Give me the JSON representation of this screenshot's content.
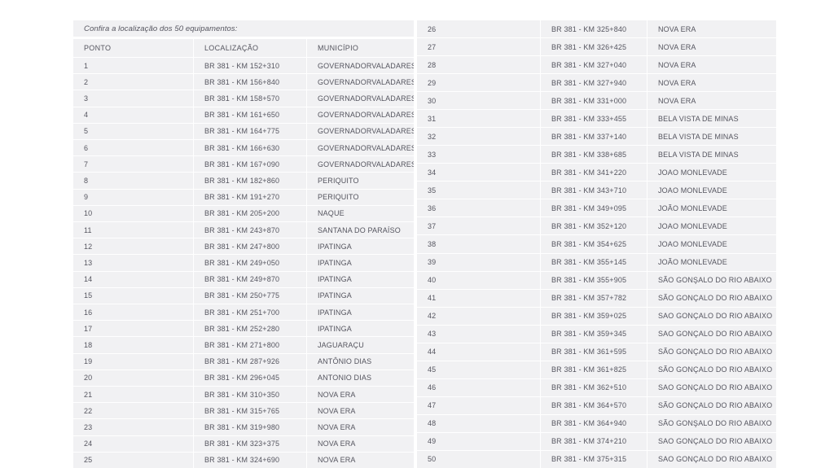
{
  "intro_label": "Confira a localização dos 50 equipamentos:",
  "columns": {
    "ponto": "PONTO",
    "localizacao": "LOCALIZAÇÃO",
    "municipio": "MUNICÍPIO"
  },
  "left_rows": [
    [
      "1",
      "BR 381 - KM 152+310",
      "GOVERNADORVALADARES"
    ],
    [
      "2",
      "BR 381 - KM 156+840",
      "GOVERNADORVALADARES"
    ],
    [
      "3",
      "BR 381 - KM 158+570",
      "GOVERNADORVALADARES"
    ],
    [
      "4",
      "BR 381 - KM 161+650",
      "GOVERNADORVALADARES"
    ],
    [
      "5",
      "BR 381 - KM 164+775",
      "GOVERNADORVALADARES"
    ],
    [
      "6",
      "BR 381 - KM 166+630",
      "GOVERNADORVALADARES"
    ],
    [
      "7",
      "BR 381 - KM 167+090",
      "GOVERNADORVALADARES"
    ],
    [
      "8",
      "BR 381 - KM 182+860",
      "PERIQUITO"
    ],
    [
      "9",
      "BR 381 - KM 191+270",
      "PERIQUITO"
    ],
    [
      "10",
      "BR 381 - KM 205+200",
      "NAQUE"
    ],
    [
      "11",
      "BR 381 - KM 243+870",
      "SANTANA DO PARAÍSO"
    ],
    [
      "12",
      "BR 381 - KM 247+800",
      "IPATINGA"
    ],
    [
      "13",
      "BR 381 - KM 249+050",
      "IPATINGA"
    ],
    [
      "14",
      "BR 381 - KM 249+870",
      "IPATINGA"
    ],
    [
      "15",
      "BR 381 - KM 250+775",
      "IPATINGA"
    ],
    [
      "16",
      "BR 381 - KM 251+700",
      "IPATINGA"
    ],
    [
      "17",
      "BR 381 - KM 252+280",
      "IPATINGA"
    ],
    [
      "18",
      "BR 381 - KM 271+800",
      "JAGUARAÇU"
    ],
    [
      "19",
      "BR 381 - KM 287+926",
      "ANTÔNIO DIAS"
    ],
    [
      "20",
      "BR 381 - KM 296+045",
      "ANTONIO DIAS"
    ],
    [
      "21",
      "BR 381 - KM 310+350",
      "NOVA ERA"
    ],
    [
      "22",
      "BR 381 - KM 315+765",
      "NOVA ERA"
    ],
    [
      "23",
      "BR 381 - KM 319+980",
      "NOVA ERA"
    ],
    [
      "24",
      "BR 381 - KM 323+375",
      "NOVA ERA"
    ],
    [
      "25",
      "BR 381 - KM 324+690",
      "NOVA ERA"
    ]
  ],
  "right_rows": [
    [
      "26",
      "BR 381 - KM 325+840",
      "NOVA ERA"
    ],
    [
      "27",
      "BR 381 - KM 326+425",
      "NOVA ERA"
    ],
    [
      "28",
      "BR 381 - KM 327+040",
      "NOVA ERA"
    ],
    [
      "29",
      "BR 381 - KM 327+940",
      "NOVA ERA"
    ],
    [
      "30",
      "BR 381 - KM 331+000",
      "NOVA ERA"
    ],
    [
      "31",
      "BR 381 - KM 333+455",
      "BELA VISTA DE MINAS"
    ],
    [
      "32",
      "BR 381 - KM 337+140",
      "BELA VISTA DE MINAS"
    ],
    [
      "33",
      "BR 381 - KM 338+685",
      "BELA VISTA DE MINAS"
    ],
    [
      "34",
      "BR 381 - KM 341+220",
      "JOAO MONLEVADE"
    ],
    [
      "35",
      "BR 381 - KM 343+710",
      "JOAO MONLEVADE"
    ],
    [
      "36",
      "BR 381 - KM 349+095",
      "JOÃO MONLEVADE"
    ],
    [
      "37",
      "BR 381 - KM 352+120",
      "JOAO MONLEVADE"
    ],
    [
      "38",
      "BR 381 - KM 354+625",
      "JOAO MONLEVADE"
    ],
    [
      "39",
      "BR 381 - KM 355+145",
      "JOÃO MONLEVADE"
    ],
    [
      "40",
      "BR 381 - KM 355+905",
      "SÃO GONŞALO DO RIO ABAIXO"
    ],
    [
      "41",
      "BR 381 - KM 357+782",
      "SÃO GONÇALO DO RIO ABAIXO"
    ],
    [
      "42",
      "BR 381 - KM 359+025",
      "SAO GONÇALO DO RIO ABAIXO"
    ],
    [
      "43",
      "BR 381 - KM 359+345",
      "SAO GONÇALO DO RIO ABAIXO"
    ],
    [
      "44",
      "BR 381 - KM 361+595",
      "SÃO GONÇALO DO RIO ABAIXO"
    ],
    [
      "45",
      "BR 381 - KM 361+825",
      "SÃO GONÇALO DO RIO ABAIXO"
    ],
    [
      "46",
      "BR 381 - KM 362+510",
      "SAO GONÇALO DO RIO ABAIXO"
    ],
    [
      "47",
      "BR 381 - KM 364+570",
      "SÃO GONÇALO DO RIO ABAIXO"
    ],
    [
      "48",
      "BR 381 - KM 364+940",
      "SÃO GONŞALO DO RIO ABAIXO"
    ],
    [
      "49",
      "BR 381 - KM 374+210",
      "SAO GONÇALO DO RIO ABAIXO"
    ],
    [
      "50",
      "BR 381 - KM 375+315",
      "SAO GONÇALO DO RIO ABAIXO"
    ]
  ],
  "colors": {
    "page_background": "#ffffff",
    "cell_background": "#f1f1f3",
    "text": "#55555f",
    "separator": "#ffffff"
  }
}
